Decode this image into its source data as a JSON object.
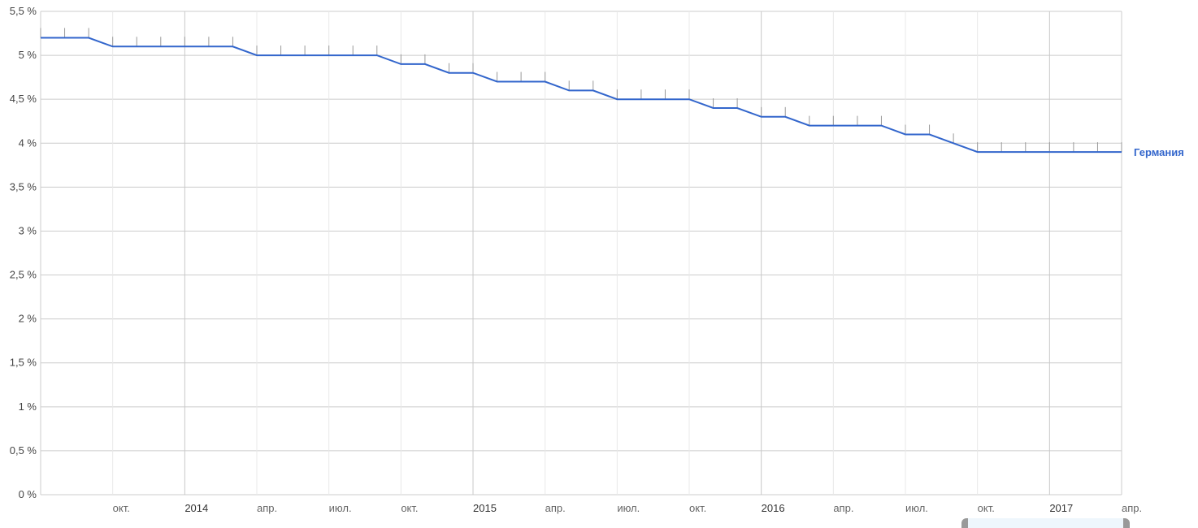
{
  "chart_data": {
    "type": "line",
    "x_start": "2013-07",
    "x_end": "2017-04",
    "x": [
      "2013-07",
      "2013-08",
      "2013-09",
      "2013-10",
      "2013-11",
      "2013-12",
      "2014-01",
      "2014-02",
      "2014-03",
      "2014-04",
      "2014-05",
      "2014-06",
      "2014-07",
      "2014-08",
      "2014-09",
      "2014-10",
      "2014-11",
      "2014-12",
      "2015-01",
      "2015-02",
      "2015-03",
      "2015-04",
      "2015-05",
      "2015-06",
      "2015-07",
      "2015-08",
      "2015-09",
      "2015-10",
      "2015-11",
      "2015-12",
      "2016-01",
      "2016-02",
      "2016-03",
      "2016-04",
      "2016-05",
      "2016-06",
      "2016-07",
      "2016-08",
      "2016-09",
      "2016-10",
      "2016-11",
      "2016-12",
      "2017-01",
      "2017-02",
      "2017-03",
      "2017-04"
    ],
    "series": [
      {
        "name": "Германия",
        "color": "#3366cc",
        "values": [
          5.2,
          5.2,
          5.2,
          5.1,
          5.1,
          5.1,
          5.1,
          5.1,
          5.1,
          5.0,
          5.0,
          5.0,
          5.0,
          5.0,
          5.0,
          4.9,
          4.9,
          4.8,
          4.8,
          4.7,
          4.7,
          4.7,
          4.6,
          4.6,
          4.5,
          4.5,
          4.5,
          4.5,
          4.4,
          4.4,
          4.3,
          4.3,
          4.2,
          4.2,
          4.2,
          4.2,
          4.1,
          4.1,
          4.0,
          3.9,
          3.9,
          3.9,
          3.9,
          3.9,
          3.9,
          3.9
        ]
      }
    ],
    "ylim": [
      0,
      5.5
    ],
    "y_ticks": [
      "0 %",
      "0,5 %",
      "1 %",
      "1,5 %",
      "2 %",
      "2,5 %",
      "3 %",
      "3,5 %",
      "4 %",
      "4,5 %",
      "5 %",
      "5,5 %"
    ],
    "x_ticks": [
      {
        "month": "2013-10",
        "label": "окт."
      },
      {
        "month": "2014-01",
        "label": "2014"
      },
      {
        "month": "2014-04",
        "label": "апр."
      },
      {
        "month": "2014-07",
        "label": "июл."
      },
      {
        "month": "2014-10",
        "label": "окт."
      },
      {
        "month": "2015-01",
        "label": "2015"
      },
      {
        "month": "2015-04",
        "label": "апр."
      },
      {
        "month": "2015-07",
        "label": "июл."
      },
      {
        "month": "2015-10",
        "label": "окт."
      },
      {
        "month": "2016-01",
        "label": "2016"
      },
      {
        "month": "2016-04",
        "label": "апр."
      },
      {
        "month": "2016-07",
        "label": "июл."
      },
      {
        "month": "2016-10",
        "label": "окт."
      },
      {
        "month": "2017-01",
        "label": "2017"
      },
      {
        "month": "2017-04",
        "label": "апр."
      }
    ],
    "grid": true,
    "legend": "right-end-of-line",
    "title": "",
    "xlabel": "",
    "ylabel": ""
  }
}
